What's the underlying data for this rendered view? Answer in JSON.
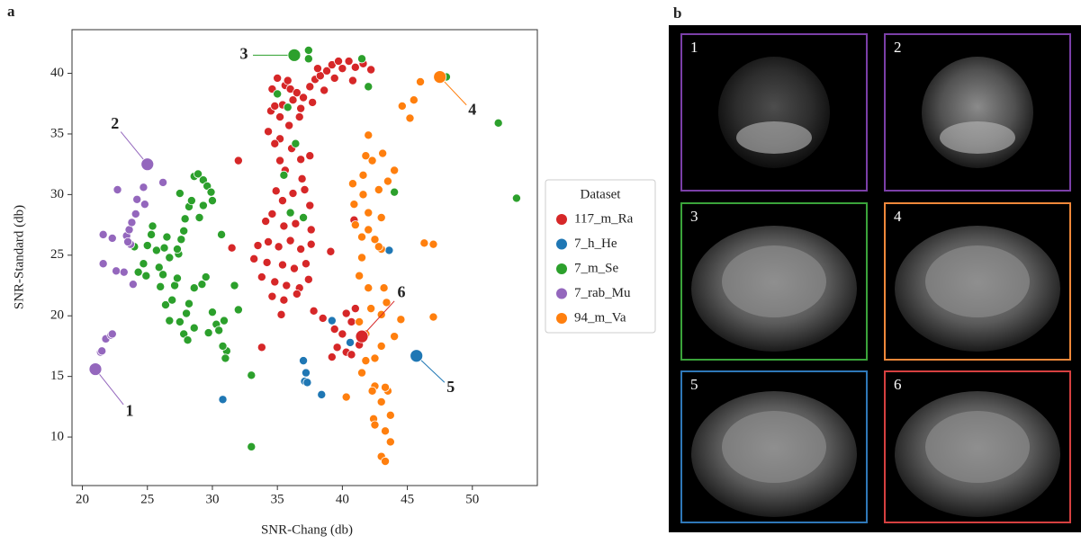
{
  "chart_data": {
    "type": "scatter",
    "panel_label": "a",
    "x_label": "SNR-Chang (db)",
    "y_label": "SNR-Standard (db)",
    "xlim": [
      19.2,
      55
    ],
    "ylim": [
      6,
      43.6
    ],
    "xticks": [
      20,
      25,
      30,
      35,
      40,
      45,
      50
    ],
    "yticks": [
      10,
      15,
      20,
      25,
      30,
      35,
      40
    ],
    "legend_title": "Dataset",
    "legend_position": "right",
    "series": [
      {
        "name": "117_m_Ra",
        "color": "#d62728",
        "x": [
          34.6,
          34.5,
          35.2,
          35.4,
          34.8,
          35,
          35.6,
          36,
          36.5,
          37,
          37.5,
          37.9,
          38.3,
          38.8,
          39.2,
          39.7,
          40,
          40.5,
          41,
          41.6,
          42.2,
          39.4,
          38.6,
          37.7,
          36.8,
          36.2,
          35.8,
          34.3,
          35.2,
          35.9,
          36.7,
          38.1,
          40.8,
          34.8,
          35.2,
          36.1,
          36.8,
          37.5,
          35.6,
          36.9,
          34.9,
          35.4,
          36.2,
          37.1,
          37.5,
          34.1,
          34.6,
          35.5,
          36.4,
          37.6,
          33.5,
          34.3,
          35.1,
          36,
          36.8,
          37.6,
          33.2,
          34.2,
          35.4,
          36.3,
          37.2,
          33.8,
          34.8,
          35.7,
          36.7,
          37.4,
          34.6,
          35.5,
          36.5,
          35.3,
          37.8,
          38.5,
          39.4,
          40,
          40.7,
          41,
          40.3,
          39.2,
          39.6,
          40.3,
          40.7,
          41.3,
          41.6,
          39.1,
          32,
          31.5,
          33.8,
          40.9
        ],
        "y": [
          38.7,
          36.9,
          36.4,
          37.4,
          37.3,
          39.6,
          39,
          38.7,
          38.4,
          38,
          38.9,
          39.5,
          39.8,
          40.2,
          40.7,
          41,
          40.4,
          41,
          40.5,
          40.8,
          40.3,
          39.6,
          38.6,
          37.6,
          37.1,
          37.8,
          39.4,
          35.2,
          34.6,
          35.7,
          36.4,
          40.4,
          39.4,
          34.2,
          32.8,
          33.8,
          32.9,
          33.2,
          32,
          31.3,
          30.3,
          29.5,
          30.1,
          30.4,
          29.1,
          27.8,
          28.4,
          27.4,
          27.6,
          27.1,
          25.8,
          26.1,
          25.7,
          26.2,
          25.5,
          25.9,
          24.7,
          24.4,
          24.2,
          23.9,
          24.3,
          23.2,
          22.8,
          22.5,
          22.3,
          23,
          21.6,
          21.3,
          21.8,
          20.1,
          20.4,
          19.8,
          18.9,
          18.5,
          19.5,
          20.6,
          20.2,
          16.6,
          17.4,
          17,
          16.8,
          17.6,
          18.3,
          25.3,
          32.8,
          25.6,
          17.4,
          27.9
        ]
      },
      {
        "name": "7_h_He",
        "color": "#1f77b4",
        "x": [
          30.8,
          37,
          37.2,
          37.1,
          37.3,
          38.4,
          39.2,
          40.6,
          43.6
        ],
        "y": [
          13.1,
          16.3,
          15.3,
          14.6,
          14.5,
          13.5,
          19.6,
          17.8,
          25.4
        ]
      },
      {
        "name": "7_m_Se",
        "color": "#2ca02c",
        "x": [
          24.3,
          24.7,
          24.9,
          25,
          25.3,
          25.4,
          25.7,
          25.9,
          26,
          26.2,
          26.3,
          26.5,
          26.7,
          26.4,
          26.9,
          27.1,
          27.3,
          27.4,
          27.6,
          27.8,
          27.5,
          27.9,
          28.2,
          28.4,
          28.6,
          28.9,
          29.3,
          29.6,
          29.9,
          29,
          29.3,
          30,
          28,
          28.2,
          28.6,
          27.5,
          27.8,
          28.1,
          28.6,
          29.2,
          29.5,
          30,
          30.3,
          30.5,
          30.9,
          29.7,
          31.1,
          26.7,
          27.3,
          24,
          33,
          33,
          31,
          30.8,
          32,
          30.7,
          31.7,
          37.4,
          37.4,
          35,
          35.8,
          41.5,
          42,
          44,
          48,
          52,
          53.4,
          36.4,
          35.5,
          36,
          37
        ],
        "y": [
          23.6,
          24.3,
          23.3,
          25.8,
          26.7,
          27.4,
          25.4,
          24,
          22.4,
          23.4,
          25.6,
          26.5,
          24.8,
          20.9,
          21.3,
          22.5,
          23.1,
          25.1,
          26.3,
          27,
          30.1,
          28,
          29,
          29.5,
          31.5,
          31.7,
          31.2,
          30.7,
          30.2,
          28.1,
          29.1,
          29.5,
          20.2,
          21,
          22.3,
          19.5,
          18.5,
          18,
          19,
          22.6,
          23.2,
          20.3,
          19.3,
          18.8,
          19.6,
          18.6,
          17.1,
          19.6,
          25.5,
          25.7,
          9.2,
          15.1,
          16.5,
          17.5,
          20.5,
          26.7,
          22.5,
          41.9,
          41.2,
          38.3,
          37.2,
          41.2,
          38.9,
          30.2,
          39.7,
          35.9,
          29.7,
          34.2,
          31.6,
          28.5,
          28.1
        ]
      },
      {
        "name": "7_rab_Mu",
        "color": "#9467bd",
        "x": [
          21.4,
          21.5,
          21.8,
          22.2,
          22.3,
          21.6,
          21.6,
          22.3,
          22.6,
          22.7,
          23.2,
          23.4,
          23.6,
          23.8,
          23.9,
          24.1,
          24.2,
          24.7,
          24.8,
          26.2,
          23.7,
          23.5
        ],
        "y": [
          17,
          17.1,
          18.1,
          18.4,
          18.5,
          24.3,
          26.7,
          26.4,
          23.7,
          30.4,
          23.6,
          26.6,
          27.1,
          27.7,
          22.6,
          28.4,
          29.6,
          30.6,
          29.2,
          31,
          25.9,
          26.1
        ]
      },
      {
        "name": "94_m_Va",
        "color": "#ff7f0e",
        "x": [
          46,
          45.2,
          45.5,
          44.6,
          42,
          41.8,
          42.3,
          43.1,
          41.6,
          43.5,
          44,
          40.8,
          41.6,
          42.8,
          40.9,
          42,
          41,
          42,
          43,
          41.5,
          42.5,
          43,
          42.8,
          41.5,
          41.3,
          46.3,
          47,
          43.2,
          43.4,
          42.2,
          43,
          42,
          41.3,
          41.8,
          43,
          44,
          42.5,
          41.5,
          41.8,
          42.5,
          43.5,
          43.3,
          42.3,
          40.3,
          42.4,
          43,
          43.7,
          42.5,
          43.3,
          43.7,
          43,
          43.3,
          47,
          44.5
        ],
        "y": [
          39.3,
          36.3,
          37.8,
          37.3,
          34.9,
          33.2,
          32.8,
          33.4,
          31.6,
          31.1,
          32,
          30.9,
          30,
          30.4,
          29.2,
          28.5,
          27.5,
          27.1,
          28.1,
          26.5,
          26.3,
          25.5,
          25.7,
          24.8,
          23.3,
          26,
          25.9,
          22.3,
          21.1,
          20.6,
          20.1,
          22.3,
          19.5,
          18.5,
          17.5,
          18.3,
          16.5,
          15.3,
          16.3,
          14.2,
          13.8,
          14.1,
          13.8,
          13.3,
          11.5,
          12.9,
          11.8,
          11,
          10.5,
          9.6,
          8.4,
          8,
          19.9,
          19.7
        ]
      }
    ],
    "annotations": [
      {
        "label": "1",
        "x": 21,
        "y": 15.6,
        "color": "#9467bd"
      },
      {
        "label": "2",
        "x": 25,
        "y": 32.5,
        "color": "#9467bd"
      },
      {
        "label": "3",
        "x": 36.3,
        "y": 41.5,
        "color": "#2ca02c"
      },
      {
        "label": "4",
        "x": 47.5,
        "y": 39.7,
        "color": "#ff7f0e"
      },
      {
        "label": "5",
        "x": 45.7,
        "y": 16.7,
        "color": "#1f77b4"
      },
      {
        "label": "6",
        "x": 41.5,
        "y": 18.3,
        "color": "#d62728"
      }
    ]
  },
  "panel_b": {
    "label": "b",
    "images": [
      {
        "label": "1",
        "color": "#7b3fa8"
      },
      {
        "label": "2",
        "color": "#7b3fa8"
      },
      {
        "label": "3",
        "color": "#3aa33a"
      },
      {
        "label": "4",
        "color": "#f0883a"
      },
      {
        "label": "5",
        "color": "#2f78b8"
      },
      {
        "label": "6",
        "color": "#d64040"
      }
    ]
  }
}
